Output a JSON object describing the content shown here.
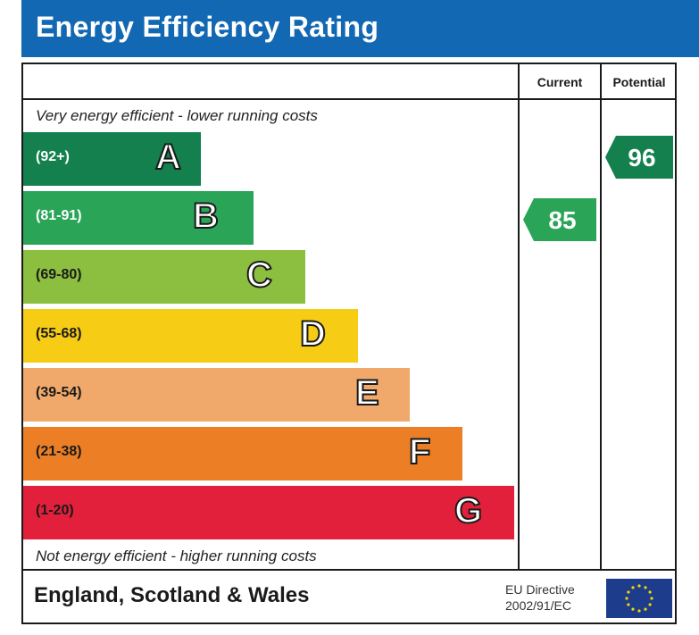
{
  "title": "Energy Efficiency Rating",
  "columns": {
    "current": "Current",
    "potential": "Potential"
  },
  "captions": {
    "top": "Very energy efficient - lower running costs",
    "bottom": "Not energy efficient - higher running costs"
  },
  "footer": {
    "region": "England, Scotland & Wales",
    "directive_line1": "EU Directive",
    "directive_line2": "2002/91/EC"
  },
  "colors": {
    "title_bar": "#1268b3",
    "eu_flag": "#1d3d8c",
    "eu_star": "#f2d600"
  },
  "chart_data": {
    "type": "bar",
    "title": "Energy Efficiency Rating",
    "bands": [
      {
        "letter": "A",
        "range": "(92+)",
        "color": "#13804e",
        "text_color": "#ffffff"
      },
      {
        "letter": "B",
        "range": "(81-91)",
        "color": "#2aa558",
        "text_color": "#ffffff"
      },
      {
        "letter": "C",
        "range": "(69-80)",
        "color": "#8cbf3f",
        "text_color": "#1a1a1a"
      },
      {
        "letter": "D",
        "range": "(55-68)",
        "color": "#f6cc14",
        "text_color": "#1a1a1a"
      },
      {
        "letter": "E",
        "range": "(39-54)",
        "color": "#f0a96a",
        "text_color": "#1a1a1a"
      },
      {
        "letter": "F",
        "range": "(21-38)",
        "color": "#ec7f26",
        "text_color": "#1a1a1a"
      },
      {
        "letter": "G",
        "range": "(1-20)",
        "color": "#e3203b",
        "text_color": "#1a1a1a"
      }
    ],
    "current": {
      "value": 85,
      "band": "B",
      "color": "#2aa558"
    },
    "potential": {
      "value": 96,
      "band": "A",
      "color": "#13804e"
    }
  }
}
